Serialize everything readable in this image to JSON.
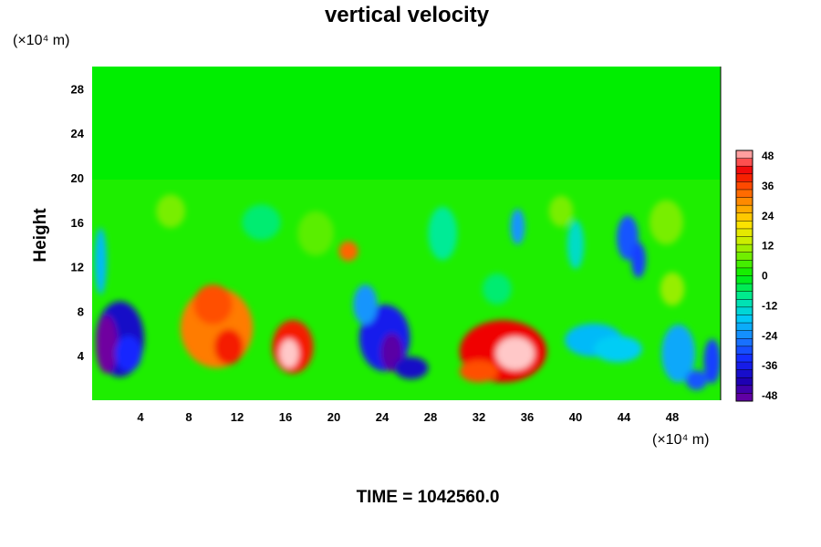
{
  "chart_data": {
    "type": "heatmap",
    "title": "vertical velocity",
    "ylabel": "Height",
    "y_unit": "(×10⁴ m)",
    "x_unit": "(×10⁴ m)",
    "xlim": [
      0,
      52
    ],
    "ylim": [
      0,
      30
    ],
    "x_ticks": [
      "4",
      "8",
      "12",
      "16",
      "20",
      "24",
      "28",
      "32",
      "36",
      "40",
      "44",
      "48"
    ],
    "y_ticks": [
      "4",
      "8",
      "12",
      "16",
      "20",
      "24",
      "28"
    ],
    "colorbar": {
      "range": [
        -48,
        48
      ],
      "ticks": [
        "48",
        "36",
        "24",
        "12",
        "0",
        "-12",
        "-24",
        "-36",
        "-48"
      ]
    },
    "background_value": 0,
    "features": [
      {
        "x": 2.3,
        "y": 5.5,
        "rx": 2.0,
        "ry": 3.4,
        "value": -38
      },
      {
        "x": 1.2,
        "y": 5.0,
        "rx": 0.9,
        "ry": 2.6,
        "value": -48
      },
      {
        "x": 3.0,
        "y": 4.2,
        "rx": 1.1,
        "ry": 1.6,
        "value": -32
      },
      {
        "x": 0.7,
        "y": 12.5,
        "rx": 0.5,
        "ry": 3.0,
        "value": -18
      },
      {
        "x": 10.3,
        "y": 6.5,
        "rx": 3.0,
        "ry": 3.6,
        "value": 30
      },
      {
        "x": 10.0,
        "y": 8.6,
        "rx": 1.6,
        "ry": 1.8,
        "value": 34
      },
      {
        "x": 11.3,
        "y": 4.8,
        "rx": 1.2,
        "ry": 1.6,
        "value": 38
      },
      {
        "x": 16.6,
        "y": 4.8,
        "rx": 1.7,
        "ry": 2.4,
        "value": 38
      },
      {
        "x": 16.3,
        "y": 4.2,
        "rx": 0.8,
        "ry": 1.3,
        "value": 48
      },
      {
        "x": 21.2,
        "y": 13.4,
        "rx": 0.8,
        "ry": 0.9,
        "value": 32
      },
      {
        "x": 24.2,
        "y": 5.6,
        "rx": 2.1,
        "ry": 3.0,
        "value": -34
      },
      {
        "x": 24.8,
        "y": 4.3,
        "rx": 0.9,
        "ry": 1.7,
        "value": -46
      },
      {
        "x": 26.4,
        "y": 2.9,
        "rx": 1.4,
        "ry": 1.0,
        "value": -38
      },
      {
        "x": 22.6,
        "y": 8.6,
        "rx": 1.0,
        "ry": 1.8,
        "value": -22
      },
      {
        "x": 34.0,
        "y": 4.4,
        "rx": 3.6,
        "ry": 2.8,
        "value": 40
      },
      {
        "x": 35.0,
        "y": 4.2,
        "rx": 1.6,
        "ry": 1.5,
        "value": 48
      },
      {
        "x": 32.0,
        "y": 2.6,
        "rx": 1.6,
        "ry": 1.0,
        "value": 34
      },
      {
        "x": 41.5,
        "y": 5.4,
        "rx": 2.4,
        "ry": 1.5,
        "value": -18
      },
      {
        "x": 43.5,
        "y": 4.6,
        "rx": 2.0,
        "ry": 1.2,
        "value": -16
      },
      {
        "x": 48.5,
        "y": 4.2,
        "rx": 1.4,
        "ry": 2.6,
        "value": -20
      },
      {
        "x": 51.3,
        "y": 3.5,
        "rx": 0.7,
        "ry": 2.0,
        "value": -30
      },
      {
        "x": 50.0,
        "y": 1.8,
        "rx": 0.9,
        "ry": 0.9,
        "value": -28
      },
      {
        "x": 35.2,
        "y": 15.6,
        "rx": 0.6,
        "ry": 1.6,
        "value": -22
      },
      {
        "x": 44.3,
        "y": 14.6,
        "rx": 0.9,
        "ry": 2.0,
        "value": -28
      },
      {
        "x": 45.2,
        "y": 12.6,
        "rx": 0.6,
        "ry": 1.6,
        "value": -30
      },
      {
        "x": 40.0,
        "y": 14.0,
        "rx": 0.7,
        "ry": 2.2,
        "value": -12
      },
      {
        "x": 29.0,
        "y": 15.0,
        "rx": 1.2,
        "ry": 2.4,
        "value": -8
      },
      {
        "x": 18.5,
        "y": 15.0,
        "rx": 1.5,
        "ry": 2.0,
        "value": 6
      },
      {
        "x": 14.0,
        "y": 16.0,
        "rx": 1.6,
        "ry": 1.6,
        "value": -6
      },
      {
        "x": 6.5,
        "y": 17.0,
        "rx": 1.2,
        "ry": 1.5,
        "value": 8
      },
      {
        "x": 47.5,
        "y": 16.0,
        "rx": 1.4,
        "ry": 2.0,
        "value": 8
      },
      {
        "x": 38.8,
        "y": 17.0,
        "rx": 1.0,
        "ry": 1.4,
        "value": 8
      },
      {
        "x": 48.0,
        "y": 10.0,
        "rx": 1.0,
        "ry": 1.5,
        "value": 10
      },
      {
        "x": 33.5,
        "y": 10.0,
        "rx": 1.2,
        "ry": 1.4,
        "value": -6
      }
    ]
  },
  "footer": {
    "time_label": "TIME = 1042560.0"
  }
}
